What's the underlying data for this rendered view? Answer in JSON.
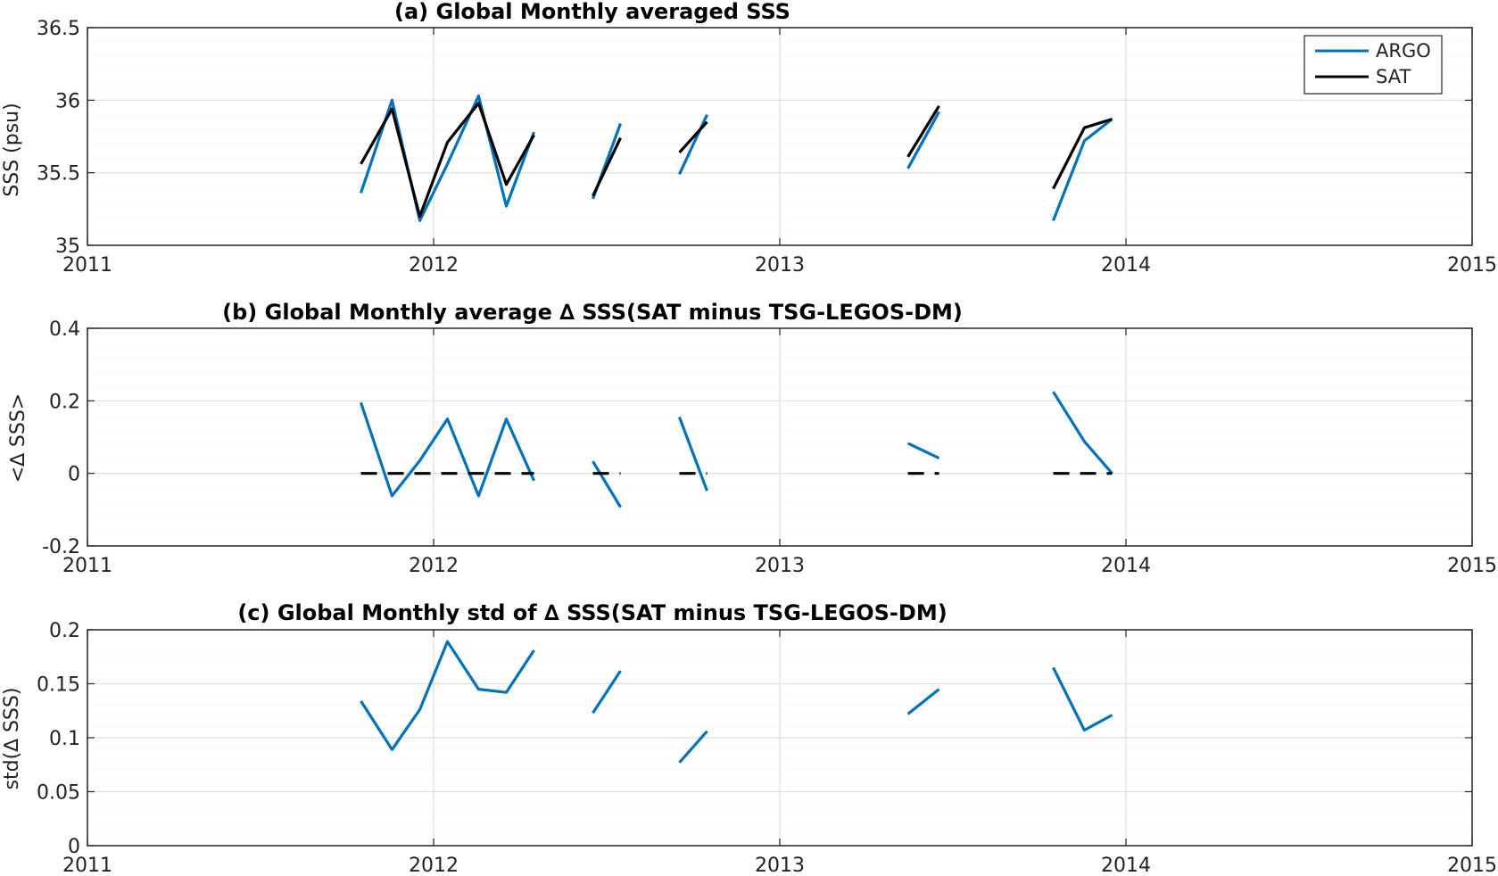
{
  "colors": {
    "argo": "#0072BD",
    "sat": "#000000",
    "zero": "#000000",
    "grid_major": "#dedede",
    "grid_minor": "#e6e6e6",
    "axis": "#262626"
  },
  "chart_data": [
    {
      "type": "line",
      "title": "(a) Global Monthly averaged SSS",
      "xlabel": "",
      "ylabel": "SSS (psu)",
      "xlim": [
        2011,
        2015
      ],
      "ylim": [
        35,
        36.5
      ],
      "xticks": [
        2011,
        2012,
        2013,
        2014,
        2015
      ],
      "xtick_labels": [
        "2011",
        "2012",
        "2013",
        "2014",
        "2015"
      ],
      "yticks": [
        35,
        35.5,
        36,
        36.5
      ],
      "ytick_labels": [
        "35",
        "35.5",
        "36",
        "36.5"
      ],
      "grid": true,
      "minor_grid": true,
      "legend": {
        "placement": "top-right",
        "entries": [
          "ARGO",
          "SAT"
        ]
      },
      "series": [
        {
          "name": "ARGO",
          "color": "#0072BD",
          "style": "solid",
          "segments": [
            [
              [
                2011.79,
                35.36
              ],
              [
                2011.88,
                36.0
              ],
              [
                2011.96,
                35.17
              ],
              [
                2012.04,
                35.56
              ],
              [
                2012.13,
                36.03
              ],
              [
                2012.21,
                35.27
              ],
              [
                2012.29,
                35.78
              ]
            ],
            [
              [
                2012.46,
                35.32
              ],
              [
                2012.54,
                35.84
              ]
            ],
            [
              [
                2012.71,
                35.49
              ],
              [
                2012.79,
                35.9
              ]
            ],
            [
              [
                2013.37,
                35.53
              ],
              [
                2013.46,
                35.92
              ]
            ],
            [
              [
                2013.79,
                35.17
              ],
              [
                2013.88,
                35.72
              ],
              [
                2013.96,
                35.87
              ]
            ]
          ]
        },
        {
          "name": "SAT",
          "color": "#000000",
          "style": "solid",
          "segments": [
            [
              [
                2011.79,
                35.56
              ],
              [
                2011.88,
                35.94
              ],
              [
                2011.96,
                35.2
              ],
              [
                2012.04,
                35.71
              ],
              [
                2012.13,
                35.98
              ],
              [
                2012.21,
                35.42
              ],
              [
                2012.29,
                35.76
              ]
            ],
            [
              [
                2012.46,
                35.34
              ],
              [
                2012.54,
                35.74
              ]
            ],
            [
              [
                2012.71,
                35.64
              ],
              [
                2012.79,
                35.85
              ]
            ],
            [
              [
                2013.37,
                35.61
              ],
              [
                2013.46,
                35.96
              ]
            ],
            [
              [
                2013.79,
                35.39
              ],
              [
                2013.88,
                35.81
              ],
              [
                2013.96,
                35.87
              ]
            ]
          ]
        }
      ]
    },
    {
      "type": "line",
      "title": "(b) Global Monthly average ∆ SSS(SAT minus TSG-LEGOS-DM)",
      "xlabel": "",
      "ylabel": "<∆ SSS>",
      "xlim": [
        2011,
        2015
      ],
      "ylim": [
        -0.2,
        0.4
      ],
      "xticks": [
        2011,
        2012,
        2013,
        2014,
        2015
      ],
      "xtick_labels": [
        "2011",
        "2012",
        "2013",
        "2014",
        "2015"
      ],
      "yticks": [
        -0.2,
        0,
        0.2,
        0.4
      ],
      "ytick_labels": [
        "-0.2",
        "0",
        "0.2",
        "0.4"
      ],
      "grid": true,
      "minor_grid": true,
      "series": [
        {
          "color": "#0072BD",
          "style": "solid",
          "segments": [
            [
              [
                2011.79,
                0.195
              ],
              [
                2011.88,
                -0.062
              ],
              [
                2011.96,
                0.035
              ],
              [
                2012.04,
                0.15
              ],
              [
                2012.13,
                -0.062
              ],
              [
                2012.21,
                0.15
              ],
              [
                2012.29,
                -0.02
              ]
            ],
            [
              [
                2012.46,
                0.033
              ],
              [
                2012.54,
                -0.093
              ]
            ],
            [
              [
                2012.71,
                0.155
              ],
              [
                2012.79,
                -0.048
              ]
            ],
            [
              [
                2013.37,
                0.083
              ],
              [
                2013.46,
                0.042
              ]
            ],
            [
              [
                2013.79,
                0.225
              ],
              [
                2013.88,
                0.088
              ],
              [
                2013.96,
                0.0
              ]
            ]
          ]
        },
        {
          "color": "#000000",
          "style": "dashed",
          "segments": [
            [
              [
                2011.79,
                0
              ],
              [
                2012.29,
                0
              ]
            ],
            [
              [
                2012.46,
                0
              ],
              [
                2012.54,
                0
              ]
            ],
            [
              [
                2012.71,
                0
              ],
              [
                2012.79,
                0
              ]
            ],
            [
              [
                2013.37,
                0
              ],
              [
                2013.46,
                0
              ]
            ],
            [
              [
                2013.79,
                0
              ],
              [
                2013.96,
                0
              ]
            ]
          ]
        }
      ]
    },
    {
      "type": "line",
      "title": "(c) Global Monthly std of ∆ SSS(SAT minus TSG-LEGOS-DM)",
      "xlabel": "",
      "ylabel": "std(∆ SSS)",
      "xlim": [
        2011,
        2015
      ],
      "ylim": [
        0,
        0.2
      ],
      "xticks": [
        2011,
        2012,
        2013,
        2014,
        2015
      ],
      "xtick_labels": [
        "2011",
        "2012",
        "2013",
        "2014",
        "2015"
      ],
      "yticks": [
        0,
        0.05,
        0.1,
        0.15,
        0.2
      ],
      "ytick_labels": [
        "0",
        "0.05",
        "0.1",
        "0.15",
        "0.2"
      ],
      "grid": true,
      "minor_grid": true,
      "series": [
        {
          "color": "#0072BD",
          "style": "solid",
          "segments": [
            [
              [
                2011.79,
                0.134
              ],
              [
                2011.88,
                0.089
              ],
              [
                2011.96,
                0.126
              ],
              [
                2012.04,
                0.189
              ],
              [
                2012.13,
                0.145
              ],
              [
                2012.21,
                0.142
              ],
              [
                2012.29,
                0.181
              ]
            ],
            [
              [
                2012.46,
                0.123
              ],
              [
                2012.54,
                0.162
              ]
            ],
            [
              [
                2012.71,
                0.077
              ],
              [
                2012.79,
                0.106
              ]
            ],
            [
              [
                2013.37,
                0.122
              ],
              [
                2013.46,
                0.145
              ]
            ],
            [
              [
                2013.79,
                0.165
              ],
              [
                2013.88,
                0.107
              ],
              [
                2013.96,
                0.121
              ]
            ]
          ]
        }
      ]
    }
  ]
}
